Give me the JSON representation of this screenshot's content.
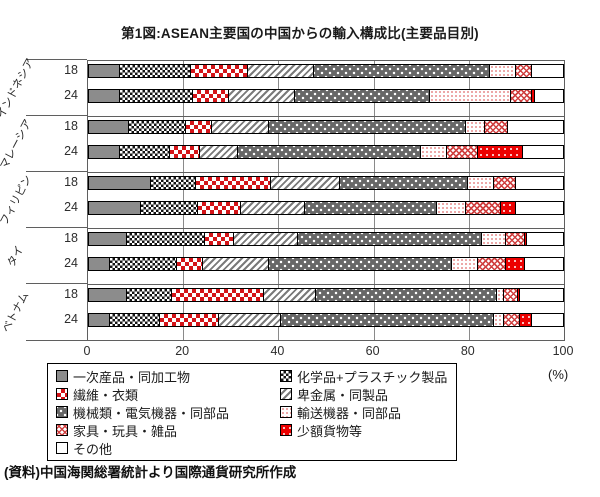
{
  "title": "第1図:ASEAN主要国の中国からの輸入構成比(主要品目別)",
  "source": "(資料)中国海関総署統計より国際通貨研究所作成",
  "axis": {
    "unit_label": "(%)",
    "ticks": [
      0,
      20,
      40,
      60,
      80,
      100
    ]
  },
  "colors": {
    "primary_gray": "#8c8c8c",
    "machinery_dark_gray": "#676767",
    "red": "#d41418",
    "bright_red": "#ec0000",
    "pink_dots": "#eca2a2",
    "grid": "#8a8a8a",
    "border": "#000000"
  },
  "chart_data": {
    "type": "bar",
    "stacked": true,
    "orientation": "horizontal",
    "title": "第1図:ASEAN主要国の中国からの輸入構成比(主要品目別)",
    "xlabel": "(%)",
    "xlim": [
      0,
      100
    ],
    "grid": true,
    "legend_position": "bottom",
    "legend_columns": 2,
    "categories": [
      "一次産品・同加工物",
      "化学品+プラスチック製品",
      "繊維・衣類",
      "卑金属・同製品",
      "機械類・電気機器・同部品",
      "輸送機器・同部品",
      "家具・玩具・雑品",
      "少額貨物等",
      "その他"
    ],
    "patterns": [
      "solid-gray",
      "black-white-checker",
      "red-white-checker",
      "gray-diagonal-stripes",
      "dark-gray-white-dots",
      "pink-fine-dots",
      "red-crosshatch",
      "solid-red",
      "white"
    ],
    "groups": [
      {
        "label": "インドネシア",
        "bars": [
          {
            "year": "18",
            "values": [
              6.5,
              15,
              12,
              14,
              37,
              5.5,
              3.5,
              0,
              6.5
            ]
          },
          {
            "year": "24",
            "values": [
              6.5,
              15.5,
              7.5,
              14,
              28.5,
              17,
              4.5,
              0.5,
              6
            ]
          }
        ]
      },
      {
        "label": "マレーシア",
        "bars": [
          {
            "year": "18",
            "values": [
              8.5,
              12,
              5.5,
              12,
              41.5,
              4,
              5,
              0,
              11.5
            ]
          },
          {
            "year": "24",
            "values": [
              6.5,
              10.5,
              6.5,
              8,
              38.5,
              5.5,
              6.5,
              9.5,
              8.5
            ]
          }
        ]
      },
      {
        "label": "フィリピン",
        "bars": [
          {
            "year": "18",
            "values": [
              13,
              9.5,
              16,
              14.5,
              27,
              5.5,
              4.5,
              0,
              10
            ]
          },
          {
            "year": "24",
            "values": [
              11,
              12,
              9,
              13.5,
              28,
              6,
              7.5,
              3,
              10
            ]
          }
        ]
      },
      {
        "label": "タイ",
        "bars": [
          {
            "year": "18",
            "values": [
              8,
              16.5,
              6,
              13.5,
              39,
              5,
              4,
              0.5,
              7.5
            ]
          },
          {
            "year": "24",
            "values": [
              4.5,
              14,
              5.5,
              14,
              38.5,
              5.5,
              6,
              4,
              8
            ]
          }
        ]
      },
      {
        "label": "ベトナム",
        "bars": [
          {
            "year": "18",
            "values": [
              8,
              9.5,
              19.5,
              11,
              38,
              1.5,
              3,
              0.5,
              9
            ]
          },
          {
            "year": "24",
            "values": [
              4.5,
              10.5,
              12.5,
              13,
              45,
              2,
              3.5,
              2.5,
              6.5
            ]
          }
        ]
      }
    ]
  }
}
